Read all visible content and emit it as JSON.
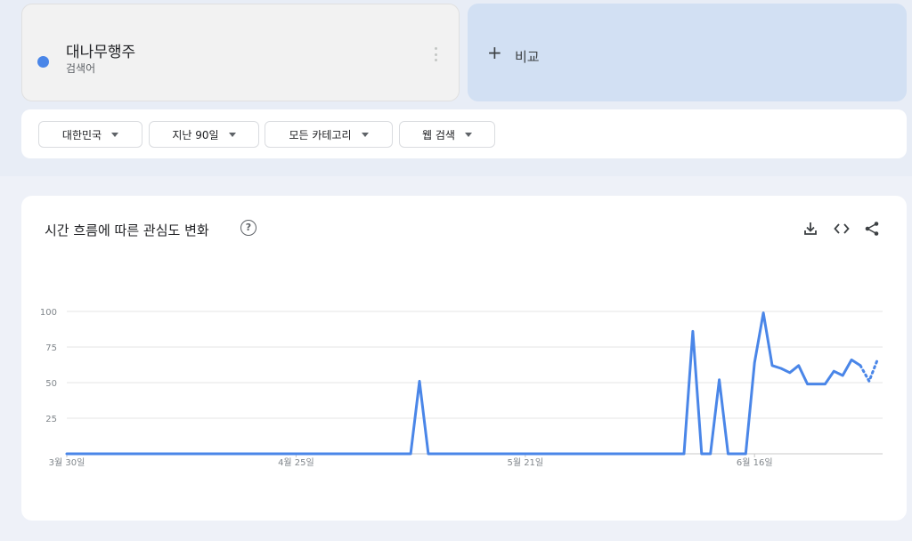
{
  "term": {
    "name": "대나무행주",
    "subtitle": "검색어",
    "color": "#4a86e8"
  },
  "compare": {
    "plus_icon": "plus-icon",
    "label": "비교"
  },
  "filters": [
    {
      "label": "대한민국"
    },
    {
      "label": "지난 90일"
    },
    {
      "label": "모든 카테고리"
    },
    {
      "label": "웹 검색"
    }
  ],
  "chart": {
    "title": "시간 흐름에 따른 관심도 변화",
    "help_icon": "help-icon",
    "actions": [
      "download-icon",
      "embed-icon",
      "share-icon"
    ]
  },
  "chart_data": {
    "type": "line",
    "x_tick_labels": [
      "3월 30일",
      "4월 25일",
      "5월 21일",
      "6월 16일"
    ],
    "y_tick_labels": [
      "100",
      "75",
      "50",
      "25"
    ],
    "ylim": [
      0,
      100
    ],
    "grid": true,
    "series": [
      {
        "color": "#4a86e8",
        "values": [
          0,
          0,
          0,
          0,
          0,
          0,
          0,
          0,
          0,
          0,
          0,
          0,
          0,
          0,
          0,
          0,
          0,
          0,
          0,
          0,
          0,
          0,
          0,
          0,
          0,
          0,
          0,
          0,
          0,
          0,
          0,
          0,
          0,
          0,
          0,
          0,
          0,
          0,
          0,
          0,
          51,
          0,
          0,
          0,
          0,
          0,
          0,
          0,
          0,
          0,
          0,
          0,
          0,
          0,
          0,
          0,
          0,
          0,
          0,
          0,
          0,
          0,
          0,
          0,
          0,
          0,
          0,
          0,
          0,
          0,
          0,
          86,
          0,
          0,
          52,
          0,
          0,
          0,
          64,
          99,
          62,
          60,
          57,
          62,
          49,
          49,
          49,
          58,
          55,
          66,
          62,
          51,
          67
        ],
        "partial_last_points": 2
      }
    ]
  }
}
